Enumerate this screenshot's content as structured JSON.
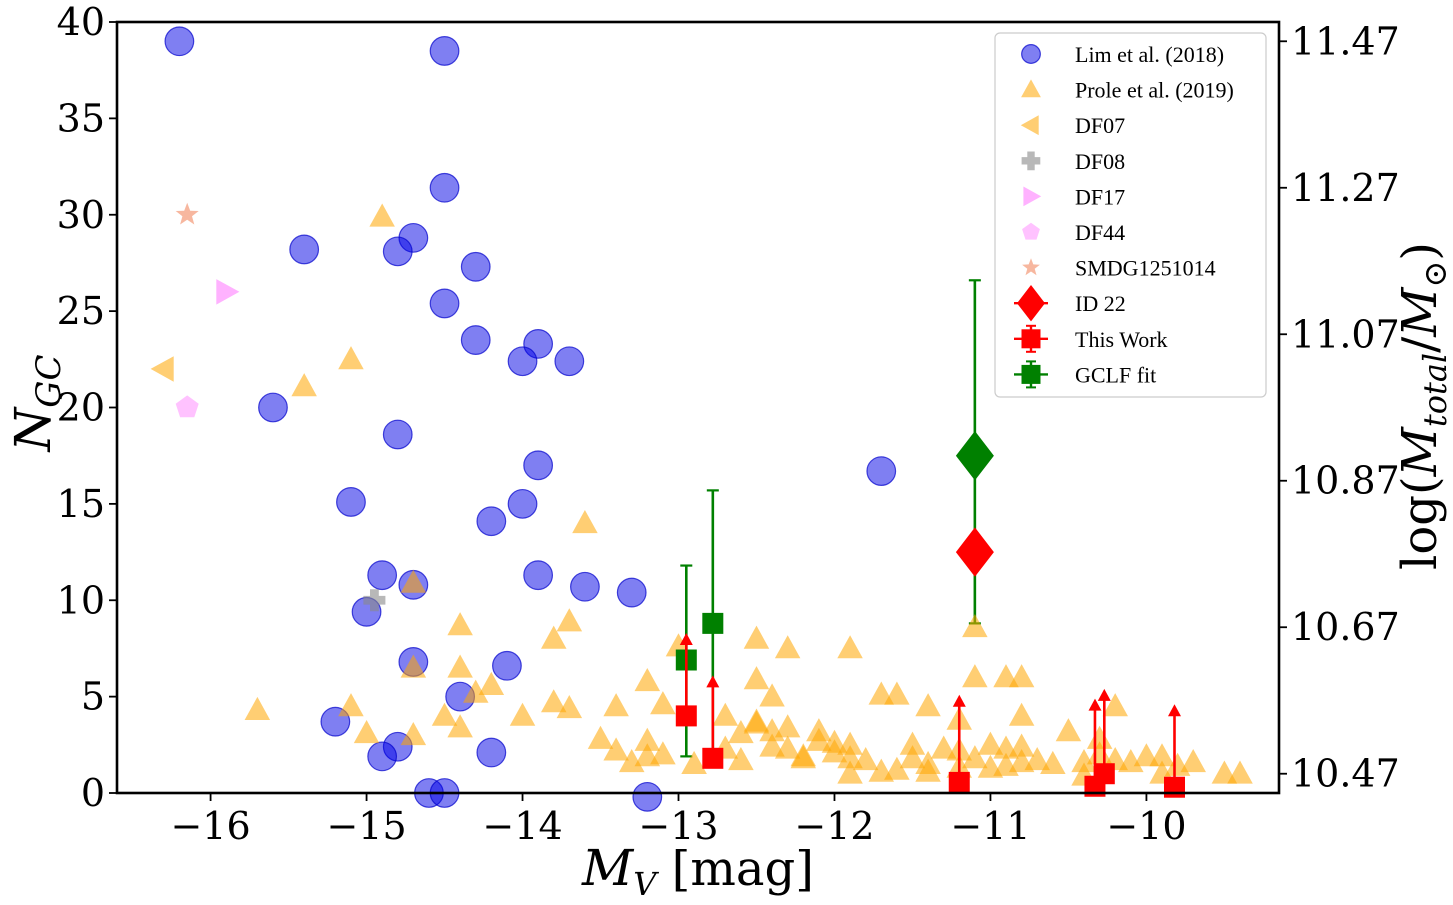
{
  "chart_data": {
    "type": "scatter",
    "xlabel": "M_V [mag]",
    "ylabel": "N_GC",
    "ylabel_right": "log(M_total/M_sun)",
    "xlim": [
      -16.6,
      -9.15
    ],
    "ylim": [
      0,
      40
    ],
    "x_ticks": [
      -16,
      -15,
      -14,
      -13,
      -12,
      -11,
      -10
    ],
    "x_tick_labels": [
      "−16",
      "−15",
      "−14",
      "−13",
      "−12",
      "−11",
      "−10"
    ],
    "y_ticks": [
      0,
      5,
      10,
      15,
      20,
      25,
      30,
      35,
      40
    ],
    "y_tick_labels": [
      "0",
      "5",
      "10",
      "15",
      "20",
      "25",
      "30",
      "35",
      "40"
    ],
    "right_ticks": [
      39.0,
      31.4,
      23.8,
      16.2,
      8.6,
      1.0
    ],
    "right_tick_labels": [
      "11.47",
      "11.27",
      "11.07",
      "10.87",
      "10.67",
      "10.47"
    ],
    "series": [
      {
        "name": "Lim et al. (2018)",
        "marker": "circle",
        "color": "#0000e6",
        "alpha": 0.5,
        "points": [
          [
            -16.2,
            39
          ],
          [
            -14.5,
            38.5
          ],
          [
            -14.5,
            31.4
          ],
          [
            -15.4,
            28.2
          ],
          [
            -14.7,
            28.8
          ],
          [
            -14.8,
            28.1
          ],
          [
            -14.3,
            27.3
          ],
          [
            -14.5,
            25.4
          ],
          [
            -14.3,
            23.5
          ],
          [
            -13.9,
            23.3
          ],
          [
            -14.0,
            22.4
          ],
          [
            -13.7,
            22.4
          ],
          [
            -15.6,
            20.0
          ],
          [
            -14.8,
            18.6
          ],
          [
            -13.9,
            17.0
          ],
          [
            -11.7,
            16.7
          ],
          [
            -15.1,
            15.1
          ],
          [
            -14.0,
            15.0
          ],
          [
            -14.2,
            14.1
          ],
          [
            -14.9,
            11.3
          ],
          [
            -13.9,
            11.3
          ],
          [
            -14.7,
            10.8
          ],
          [
            -13.6,
            10.7
          ],
          [
            -13.3,
            10.4
          ],
          [
            -15.0,
            9.4
          ],
          [
            -14.7,
            6.8
          ],
          [
            -14.1,
            6.6
          ],
          [
            -14.4,
            5.0
          ],
          [
            -15.2,
            3.7
          ],
          [
            -14.8,
            2.4
          ],
          [
            -14.9,
            1.9
          ],
          [
            -14.2,
            2.1
          ],
          [
            -14.6,
            0
          ],
          [
            -14.5,
            0
          ],
          [
            -13.2,
            -0.2
          ]
        ]
      },
      {
        "name": "Prole et al. (2019)",
        "marker": "triangle",
        "color": "#ffa500",
        "alpha": 0.55,
        "points": [
          [
            -14.9,
            29.9
          ],
          [
            -15.1,
            22.5
          ],
          [
            -15.4,
            21.1
          ],
          [
            -13.6,
            14.0
          ],
          [
            -14.7,
            10.9
          ],
          [
            -13.7,
            8.9
          ],
          [
            -14.4,
            8.7
          ],
          [
            -13.8,
            8.0
          ],
          [
            -12.5,
            8.0
          ],
          [
            -12.3,
            7.5
          ],
          [
            -11.9,
            7.5
          ],
          [
            -13.0,
            7.6
          ],
          [
            -14.7,
            6.5
          ],
          [
            -14.4,
            6.5
          ],
          [
            -13.2,
            5.8
          ],
          [
            -12.5,
            5.9
          ],
          [
            -11.6,
            5.1
          ],
          [
            -11.7,
            5.1
          ],
          [
            -11.1,
            6.0
          ],
          [
            -10.9,
            6.0
          ],
          [
            -10.8,
            6.0
          ],
          [
            -14.2,
            5.6
          ],
          [
            -14.3,
            5.2
          ],
          [
            -12.4,
            5.0
          ],
          [
            -15.7,
            4.3
          ],
          [
            -15.1,
            4.5
          ],
          [
            -14.5,
            4.0
          ],
          [
            -14.0,
            4.0
          ],
          [
            -13.8,
            4.7
          ],
          [
            -13.7,
            4.4
          ],
          [
            -13.4,
            4.5
          ],
          [
            -13.1,
            4.6
          ],
          [
            -12.7,
            4.0
          ],
          [
            -11.4,
            4.5
          ],
          [
            -11.2,
            3.8
          ],
          [
            -10.8,
            4.0
          ],
          [
            -10.2,
            4.5
          ],
          [
            -15.0,
            3.1
          ],
          [
            -14.7,
            3.0
          ],
          [
            -14.4,
            3.4
          ],
          [
            -13.5,
            2.8
          ],
          [
            -13.4,
            2.2
          ],
          [
            -13.2,
            2.7
          ],
          [
            -13.2,
            1.9
          ],
          [
            -13.1,
            2.0
          ],
          [
            -12.9,
            1.5
          ],
          [
            -12.7,
            2.3
          ],
          [
            -12.6,
            3.1
          ],
          [
            -12.5,
            3.6
          ],
          [
            -12.5,
            3.7
          ],
          [
            -12.4,
            3.2
          ],
          [
            -12.4,
            2.4
          ],
          [
            -12.3,
            3.4
          ],
          [
            -12.3,
            2.3
          ],
          [
            -12.2,
            1.8
          ],
          [
            -12.1,
            3.2
          ],
          [
            -12.1,
            2.7
          ],
          [
            -12.0,
            2.6
          ],
          [
            -12.0,
            2.1
          ],
          [
            -11.9,
            2.5
          ],
          [
            -11.9,
            1.8
          ],
          [
            -11.9,
            1.0
          ],
          [
            -11.8,
            1.7
          ],
          [
            -11.7,
            1.1
          ],
          [
            -11.6,
            1.2
          ],
          [
            -11.5,
            2.5
          ],
          [
            -11.5,
            1.8
          ],
          [
            -11.4,
            1.5
          ],
          [
            -11.4,
            1.1
          ],
          [
            -11.3,
            2.3
          ],
          [
            -11.2,
            2.2
          ],
          [
            -11.2,
            1.3
          ],
          [
            -11.1,
            1.8
          ],
          [
            -11.0,
            2.5
          ],
          [
            -11.0,
            1.3
          ],
          [
            -10.9,
            2.3
          ],
          [
            -10.9,
            1.4
          ],
          [
            -10.8,
            2.4
          ],
          [
            -10.8,
            1.6
          ],
          [
            -10.7,
            1.7
          ],
          [
            -10.6,
            1.5
          ],
          [
            -10.5,
            3.2
          ],
          [
            -10.4,
            1.6
          ],
          [
            -10.4,
            0.9
          ],
          [
            -10.3,
            2.8
          ],
          [
            -10.3,
            2.0
          ],
          [
            -10.2,
            1.7
          ],
          [
            -10.1,
            1.6
          ],
          [
            -10.0,
            1.9
          ],
          [
            -9.9,
            1.9
          ],
          [
            -9.9,
            1.0
          ],
          [
            -9.8,
            1.4
          ],
          [
            -9.7,
            1.6
          ],
          [
            -9.5,
            1.0
          ],
          [
            -9.4,
            1.0
          ],
          [
            -11.1,
            8.6
          ],
          [
            -12.6,
            1.7
          ],
          [
            -12.2,
            1.9
          ],
          [
            -13.3,
            1.6
          ]
        ]
      },
      {
        "name": "DF07",
        "marker": "triangle-left",
        "color": "#ffa500",
        "alpha": 0.55,
        "points": [
          [
            -16.3,
            22.0
          ]
        ]
      },
      {
        "name": "DF08",
        "marker": "plus",
        "color": "#888888",
        "alpha": 0.6,
        "points": [
          [
            -14.95,
            10.0
          ]
        ]
      },
      {
        "name": "DF17",
        "marker": "triangle-right",
        "color": "#ff66ff",
        "alpha": 0.5,
        "points": [
          [
            -15.9,
            26.0
          ]
        ]
      },
      {
        "name": "DF44",
        "marker": "pentagon",
        "color": "#ff66ff",
        "alpha": 0.4,
        "points": [
          [
            -16.15,
            20.0
          ]
        ]
      },
      {
        "name": "SMDG1251014",
        "marker": "star",
        "color": "#f07040",
        "alpha": 0.5,
        "points": [
          [
            -16.15,
            30.0
          ]
        ]
      },
      {
        "name": "ID 22",
        "marker": "diamond",
        "color": "#ff0000",
        "alpha": 1,
        "points": [
          [
            -11.1,
            12.5
          ]
        ]
      },
      {
        "name": "This Work",
        "marker": "square",
        "color": "#ff0000",
        "alpha": 1,
        "points": [
          [
            -12.95,
            4.0
          ],
          [
            -12.78,
            1.8
          ],
          [
            -11.2,
            0.55
          ],
          [
            -10.33,
            0.35
          ],
          [
            -10.27,
            1.0
          ],
          [
            -9.82,
            0.3
          ]
        ],
        "lower_limit_to": [
          8.3,
          6.1,
          5.1,
          4.9,
          5.4,
          4.6
        ]
      },
      {
        "name": "GCLF fit",
        "marker": "square",
        "color": "#008000",
        "alpha": 1,
        "points": [
          [
            -12.95,
            6.9
          ],
          [
            -12.78,
            8.8
          ],
          [
            -11.1,
            17.5
          ]
        ],
        "markers": [
          "square",
          "square",
          "diamond"
        ],
        "error_low": [
          5.0,
          7.3,
          8.7
        ],
        "error_high": [
          4.9,
          6.9,
          9.1
        ]
      }
    ]
  }
}
